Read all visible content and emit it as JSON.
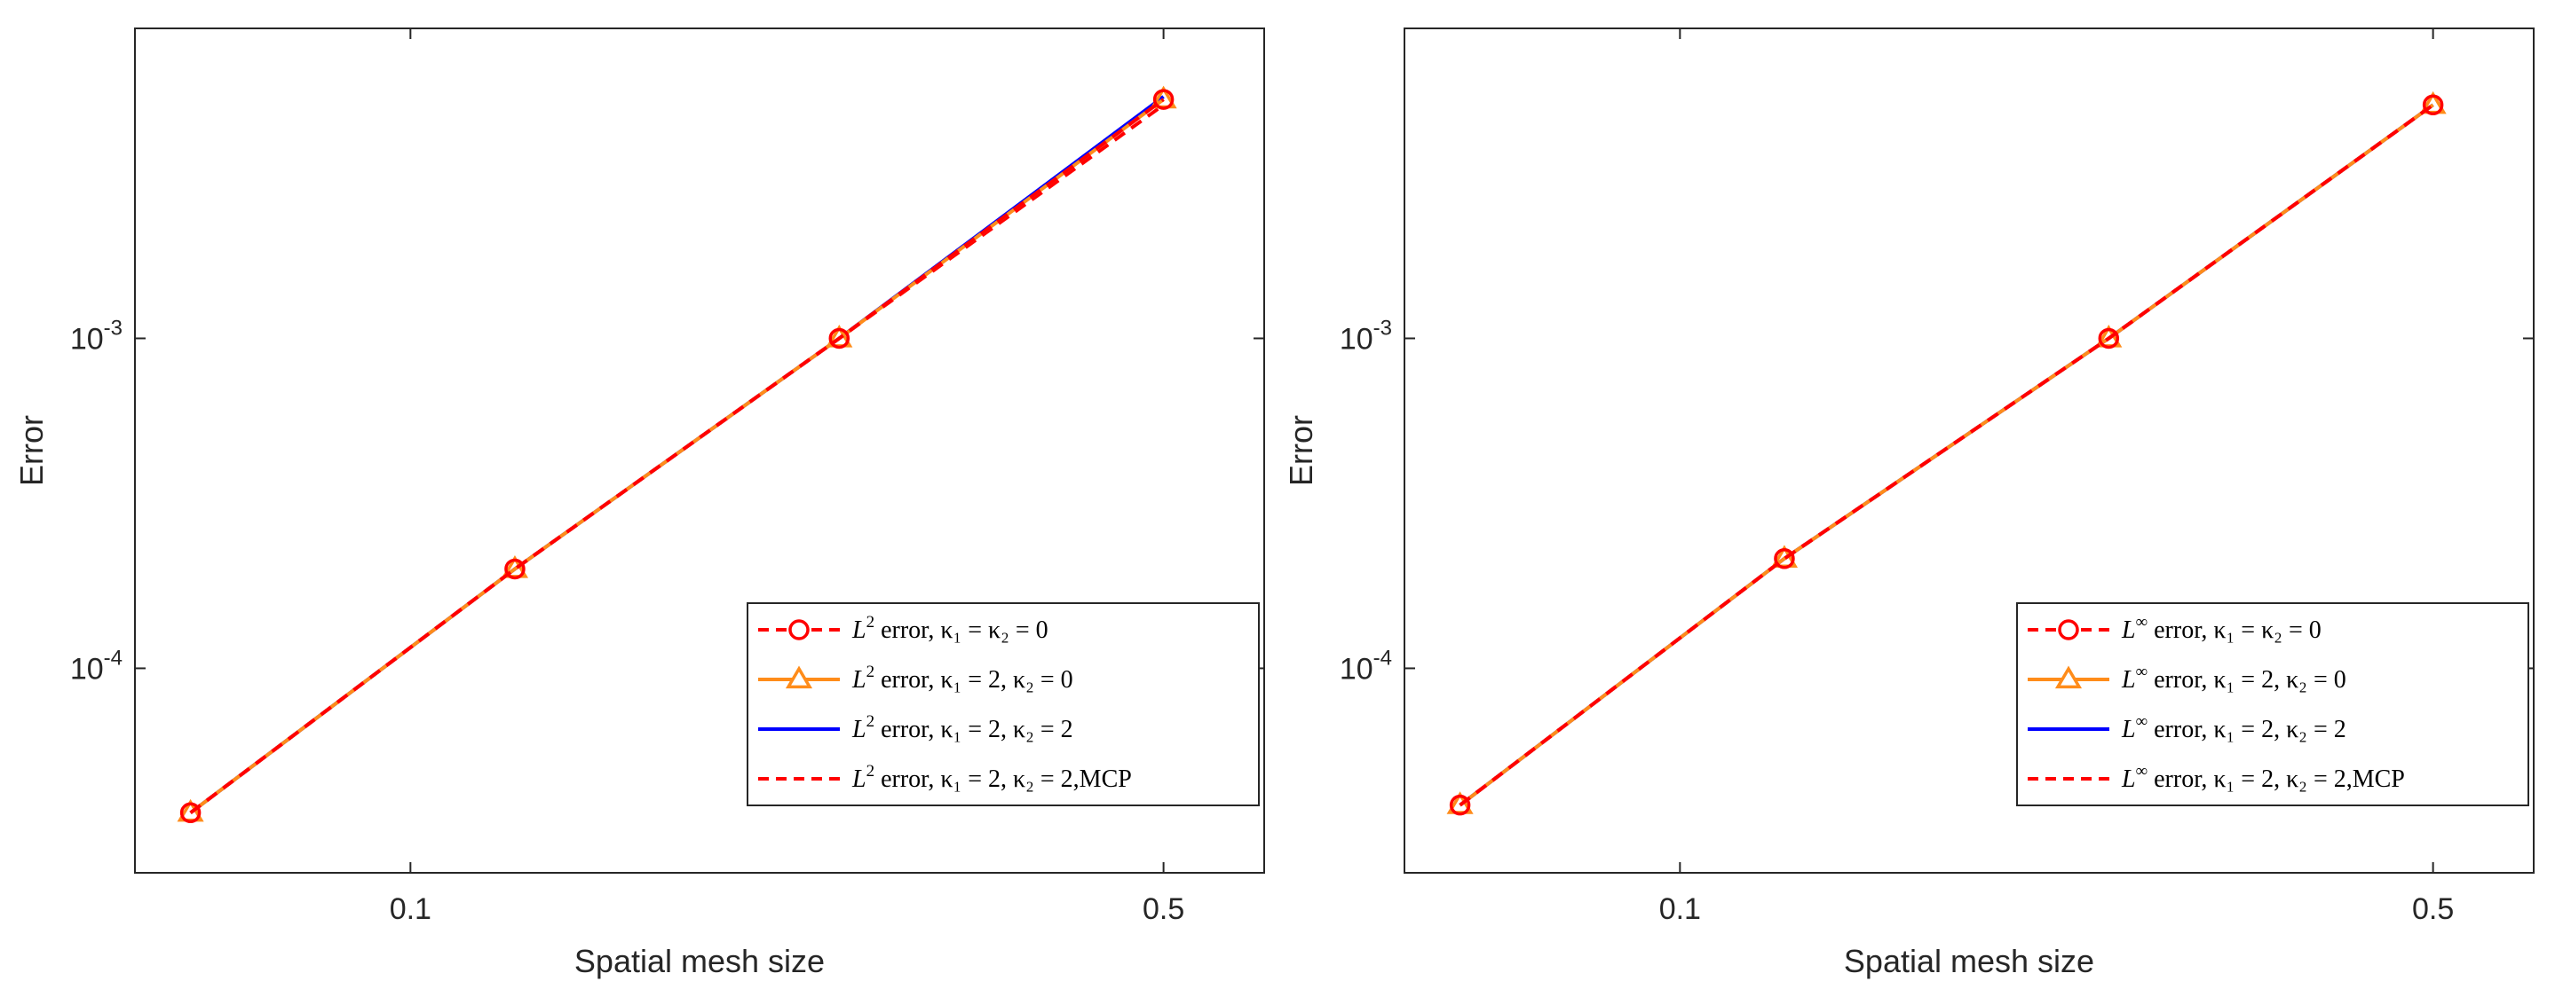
{
  "chart_data": [
    {
      "type": "line",
      "scale": {
        "x": "log",
        "y": "log"
      },
      "xlabel": "Spatial mesh size",
      "ylabel": "Error",
      "xlim": [
        0.0555,
        0.62
      ],
      "ylim": [
        2.4e-05,
        0.0087
      ],
      "xticks": [
        {
          "value": 0.1,
          "label": "0.1"
        },
        {
          "value": 0.5,
          "label": "0.5"
        }
      ],
      "yticks": [
        {
          "value": 0.0001,
          "base": "10",
          "exp": "-4"
        },
        {
          "value": 0.001,
          "base": "10",
          "exp": "-3"
        }
      ],
      "legend_position": "bottom-right",
      "x": [
        0.0625,
        0.125,
        0.25,
        0.5
      ],
      "series": [
        {
          "name": "L2 error, k1=k2=0",
          "legend": {
            "sym": "L",
            "sup": "2",
            "text": " error, κ₁ = κ₂ = 0"
          },
          "color": "#ff0000",
          "style": "dashed",
          "marker": "circle",
          "values": [
            3.65e-05,
            0.0002,
            0.001,
            0.0053
          ]
        },
        {
          "name": "L2 error, k1=2, k2=0",
          "legend": {
            "sym": "L",
            "sup": "2",
            "text": " error, κ₁ = 2, κ₂ = 0"
          },
          "color": "#ff8c1a",
          "style": "solid",
          "marker": "triangle",
          "values": [
            3.65e-05,
            0.0002,
            0.001,
            0.0053
          ]
        },
        {
          "name": "L2 error, k1=2, k2=2",
          "legend": {
            "sym": "L",
            "sup": "2",
            "text": " error, κ₁ = 2, κ₂ = 2"
          },
          "color": "#0000ff",
          "style": "solid",
          "marker": "none",
          "values": [
            3.65e-05,
            0.0002,
            0.001,
            0.0054
          ]
        },
        {
          "name": "L2 error, k1=2, k2=2, MCP",
          "legend": {
            "sym": "L",
            "sup": "2",
            "text": " error, κ₁ = 2, κ₂ = 2,MCP"
          },
          "color": "#ff0000",
          "style": "dashed",
          "marker": "none",
          "values": [
            3.65e-05,
            0.0002,
            0.001,
            0.0051
          ]
        }
      ]
    },
    {
      "type": "line",
      "scale": {
        "x": "log",
        "y": "log"
      },
      "xlabel": "Spatial mesh size",
      "ylabel": "Error",
      "xlim": [
        0.0555,
        0.62
      ],
      "ylim": [
        2.4e-05,
        0.0087
      ],
      "xticks": [
        {
          "value": 0.1,
          "label": "0.1"
        },
        {
          "value": 0.5,
          "label": "0.5"
        }
      ],
      "yticks": [
        {
          "value": 0.0001,
          "base": "10",
          "exp": "-4"
        },
        {
          "value": 0.001,
          "base": "10",
          "exp": "-3"
        }
      ],
      "legend_position": "bottom-right",
      "x": [
        0.0625,
        0.125,
        0.25,
        0.5
      ],
      "series": [
        {
          "name": "Linf error, k1=k2=0",
          "legend": {
            "sym": "L",
            "sup": "∞",
            "text": " error, κ₁ = κ₂ = 0"
          },
          "color": "#ff0000",
          "style": "dashed",
          "marker": "circle",
          "values": [
            3.85e-05,
            0.000215,
            0.001,
            0.0051
          ]
        },
        {
          "name": "Linf error, k1=2, k2=0",
          "legend": {
            "sym": "L",
            "sup": "∞",
            "text": " error, κ₁ = 2, κ₂ = 0"
          },
          "color": "#ff8c1a",
          "style": "solid",
          "marker": "triangle",
          "values": [
            3.85e-05,
            0.000215,
            0.001,
            0.0051
          ]
        },
        {
          "name": "Linf error, k1=2, k2=2",
          "legend": {
            "sym": "L",
            "sup": "∞",
            "text": " error, κ₁ = 2, κ₂ = 2"
          },
          "color": "#0000ff",
          "style": "solid",
          "marker": "none",
          "values": [
            3.85e-05,
            0.000215,
            0.001,
            0.0051
          ]
        },
        {
          "name": "Linf error, k1=2, k2=2, MCP",
          "legend": {
            "sym": "L",
            "sup": "∞",
            "text": " error, κ₁ = 2, κ₂ = 2,MCP"
          },
          "color": "#ff0000",
          "style": "dashed",
          "marker": "none",
          "values": [
            3.85e-05,
            0.000215,
            0.001,
            0.0051
          ]
        }
      ]
    }
  ]
}
